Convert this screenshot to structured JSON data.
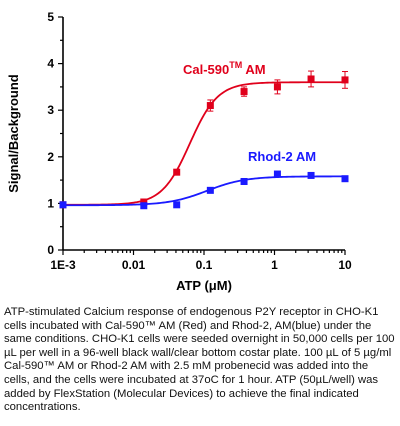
{
  "chart_data": {
    "type": "scatter",
    "xlabel": "ATP (μM)",
    "ylabel": "Signal/Background",
    "xscale": "log",
    "xlim": [
      0.001,
      10
    ],
    "ylim": [
      0,
      5
    ],
    "x_tick_labels": [
      "1E-3",
      "0.01",
      "0.1",
      "1",
      "10"
    ],
    "x_tick_values": [
      0.001,
      0.01,
      0.1,
      1,
      10
    ],
    "y_ticks": [
      0,
      1,
      2,
      3,
      4,
      5
    ],
    "series": [
      {
        "label_main": "Cal-590",
        "label_sup": "TM",
        "label_tail": " AM",
        "color": "#e0001b",
        "marker": "square",
        "points": [
          {
            "x": 0.001,
            "y": 0.97
          },
          {
            "x": 0.014,
            "y": 1.03
          },
          {
            "x": 0.041,
            "y": 1.67
          },
          {
            "x": 0.123,
            "y": 3.1
          },
          {
            "x": 0.37,
            "y": 3.4
          },
          {
            "x": 1.1,
            "y": 3.5
          },
          {
            "x": 3.3,
            "y": 3.67
          },
          {
            "x": 10,
            "y": 3.65
          }
        ],
        "errors": [
          0.03,
          0.05,
          0.05,
          0.12,
          0.1,
          0.15,
          0.17,
          0.18
        ],
        "fit": {
          "bottom": 0.97,
          "top": 3.6,
          "ec50": 0.063,
          "hill": 2.2
        }
      },
      {
        "label_main": "Rhod-2 AM",
        "label_sup": "",
        "label_tail": "",
        "color": "#1a1aff",
        "marker": "square",
        "points": [
          {
            "x": 0.001,
            "y": 0.97
          },
          {
            "x": 0.014,
            "y": 0.95
          },
          {
            "x": 0.041,
            "y": 0.97
          },
          {
            "x": 0.123,
            "y": 1.28
          },
          {
            "x": 0.37,
            "y": 1.47
          },
          {
            "x": 1.1,
            "y": 1.63
          },
          {
            "x": 3.3,
            "y": 1.6
          },
          {
            "x": 10,
            "y": 1.53
          }
        ],
        "errors": [
          0.03,
          0.03,
          0.03,
          0.04,
          0.04,
          0.05,
          0.05,
          0.05
        ],
        "fit": {
          "bottom": 0.96,
          "top": 1.58,
          "ec50": 0.11,
          "hill": 1.6
        }
      }
    ]
  },
  "caption": "ATP-stimulated Calcium response of endogenous P2Y receptor in CHO-K1 cells incubated with Cal-590™ AM (Red) and Rhod-2, AM(blue) under the same conditions. CHO-K1 cells were seeded overnight in 50,000 cells per 100 µL per well in a 96-well black wall/clear bottom costar plate. 100 µL of 5 µg/ml  Cal-590™ AM or Rhod-2 AM with 2.5 mM probenecid was added into the cells, and the cells were incubated at 37oC for 1 hour. ATP (50µL/well) was added by FlexStation (Molecular Devices) to achieve the final indicated concentrations."
}
